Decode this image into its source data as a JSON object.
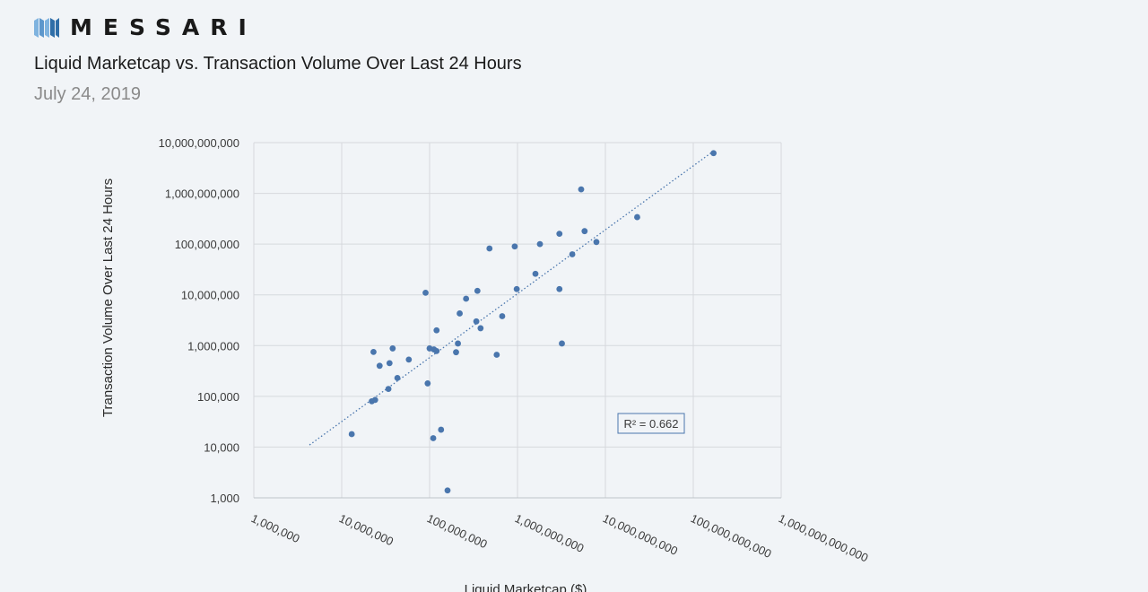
{
  "brand": {
    "name": "MESSARI",
    "colors": {
      "mark_light": "#7fb3df",
      "mark_dark": "#2f6ea8"
    }
  },
  "header": {
    "title": "Liquid Marketcap vs. Transaction Volume Over Last 24 Hours",
    "date": "July 24, 2019"
  },
  "chart_data": {
    "type": "scatter",
    "title": "Liquid Marketcap vs. Transaction Volume Over Last 24 Hours",
    "xlabel": "Liquid Marketcap ($)",
    "ylabel": "Transaction Volume Over Last 24 Hours",
    "x_scale": "log",
    "y_scale": "log",
    "xlim": [
      1000000,
      1000000000000
    ],
    "ylim": [
      1000,
      10000000000
    ],
    "x_ticks": [
      {
        "v": 1000000,
        "label": "1,000,000"
      },
      {
        "v": 10000000,
        "label": "10,000,000"
      },
      {
        "v": 100000000,
        "label": "100,000,000"
      },
      {
        "v": 1000000000,
        "label": "1,000,000,000"
      },
      {
        "v": 10000000000,
        "label": "10,000,000,000"
      },
      {
        "v": 100000000000,
        "label": "100,000,000,000"
      },
      {
        "v": 1000000000000,
        "label": "1,000,000,000,000"
      }
    ],
    "y_ticks": [
      {
        "v": 1000,
        "label": "1,000"
      },
      {
        "v": 10000,
        "label": "10,000"
      },
      {
        "v": 100000,
        "label": "100,000"
      },
      {
        "v": 1000000,
        "label": "1,000,000"
      },
      {
        "v": 10000000,
        "label": "10,000,000"
      },
      {
        "v": 100000000,
        "label": "100,000,000"
      },
      {
        "v": 1000000000,
        "label": "1,000,000,000"
      },
      {
        "v": 10000000000,
        "label": "10,000,000,000"
      }
    ],
    "grid": true,
    "marker_color": "#4a76ad",
    "trendline": {
      "type": "power",
      "color": "#4a76ad",
      "style": "dotted",
      "start": [
        4300000,
        11000
      ],
      "end": [
        160000000000,
        6300000000
      ],
      "r2_label": "R² = 0.662"
    },
    "points": [
      [
        13000000,
        18000
      ],
      [
        22000000,
        80000
      ],
      [
        23000000,
        750000
      ],
      [
        24000000,
        85000
      ],
      [
        27000000,
        400000
      ],
      [
        34000000,
        140000
      ],
      [
        35000000,
        450000
      ],
      [
        38000000,
        880000
      ],
      [
        43000000,
        230000
      ],
      [
        58000000,
        530000
      ],
      [
        90000000,
        11000000
      ],
      [
        95000000,
        180000
      ],
      [
        100000000,
        880000
      ],
      [
        110000000,
        15000
      ],
      [
        112000000,
        840000
      ],
      [
        120000000,
        780000
      ],
      [
        120000000,
        2000000
      ],
      [
        135000000,
        22000
      ],
      [
        160000000,
        1400
      ],
      [
        200000000,
        740000
      ],
      [
        210000000,
        1100000
      ],
      [
        220000000,
        4300000
      ],
      [
        260000000,
        8400000
      ],
      [
        340000000,
        3000000
      ],
      [
        350000000,
        12000000
      ],
      [
        380000000,
        2200000
      ],
      [
        480000000,
        82000000
      ],
      [
        580000000,
        660000
      ],
      [
        670000000,
        3800000
      ],
      [
        930000000,
        90000000
      ],
      [
        980000000,
        13000000
      ],
      [
        1600000000,
        26000000
      ],
      [
        1800000000,
        100000000
      ],
      [
        3000000000,
        13000000
      ],
      [
        3000000000,
        160000000
      ],
      [
        3200000000,
        1100000
      ],
      [
        4200000000,
        63000000
      ],
      [
        5300000000,
        1200000000
      ],
      [
        5800000000,
        180000000
      ],
      [
        7900000000,
        110000000
      ],
      [
        23000000000,
        340000000
      ],
      [
        170000000000,
        6200000000
      ]
    ]
  }
}
